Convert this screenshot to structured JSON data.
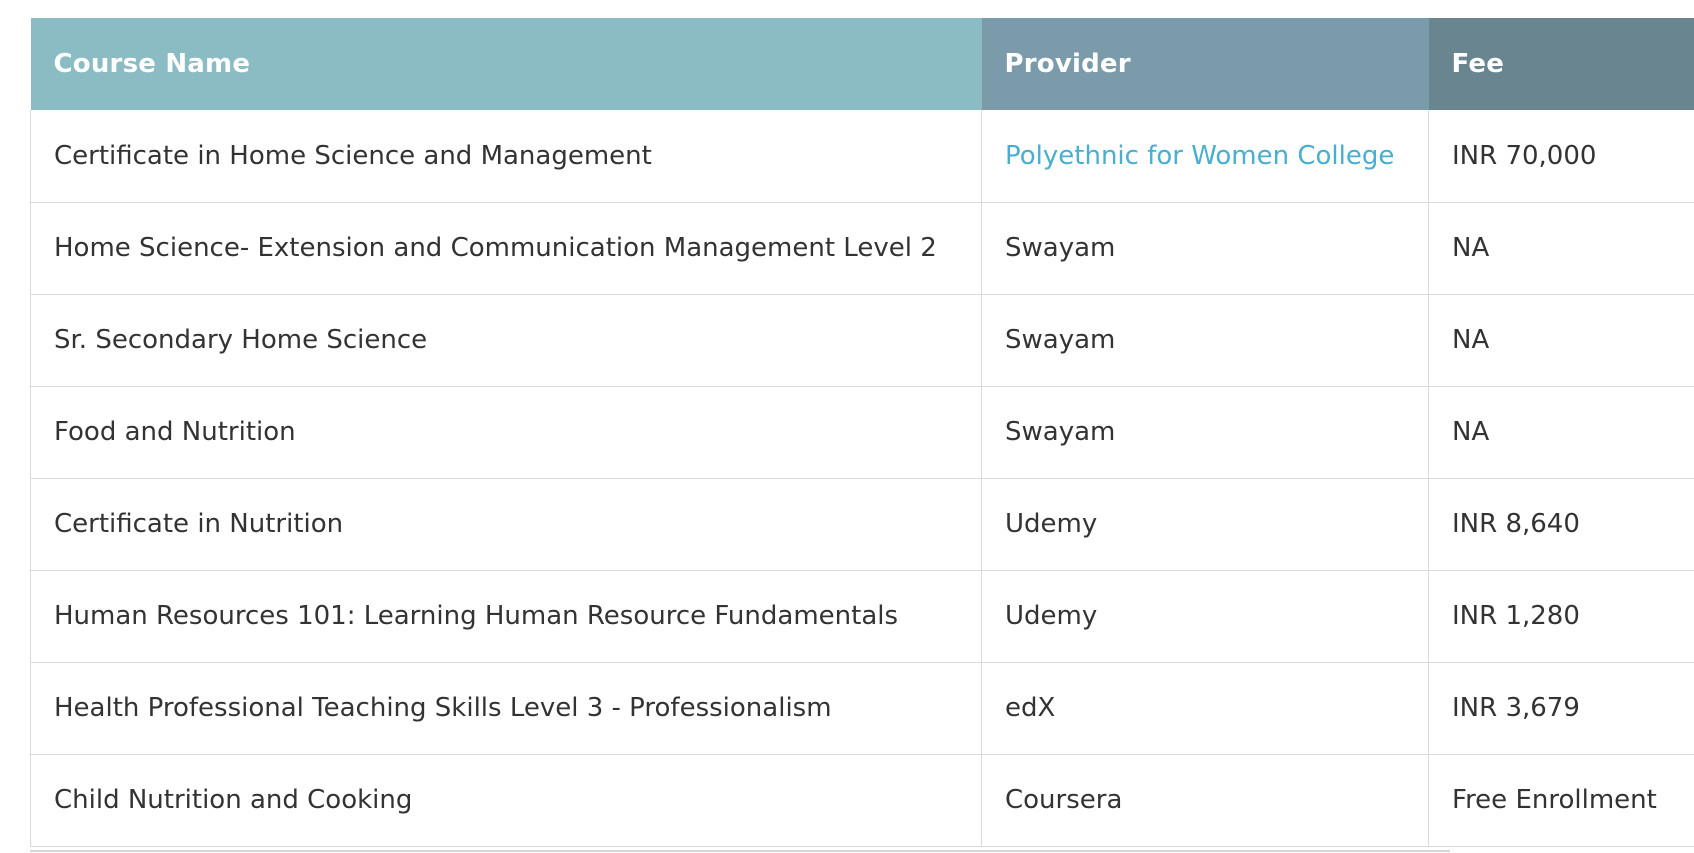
{
  "table": {
    "headers": {
      "course_name": "Course Name",
      "provider": "Provider",
      "fee": "Fee"
    },
    "rows": [
      {
        "course_name": "Certificate in Home Science and Management",
        "provider": "Polyethnic for Women College",
        "fee": "INR 70,000"
      },
      {
        "course_name": "Home Science- Extension and Communication Management Level 2",
        "provider": "Swayam",
        "fee": "NA"
      },
      {
        "course_name": "Sr. Secondary Home Science",
        "provider": "Swayam",
        "fee": "NA"
      },
      {
        "course_name": "Food and Nutrition",
        "provider": "Swayam",
        "fee": "NA"
      },
      {
        "course_name": "Certificate in Nutrition",
        "provider": "Udemy",
        "fee": "INR 8,640"
      },
      {
        "course_name": "Human Resources 101: Learning Human Resource Fundamentals",
        "provider": "Udemy",
        "fee": "INR 1,280"
      },
      {
        "course_name": "Health Professional Teaching Skills Level 3 - Professionalism",
        "provider": "edX",
        "fee": "INR 3,679"
      },
      {
        "course_name": "Child Nutrition and Cooking",
        "provider": "Coursera",
        "fee": "Free Enrollment"
      }
    ]
  },
  "colors": {
    "header_course_name_bg": "#8bbcc3",
    "header_provider_bg": "#7b9baa",
    "header_fee_bg": "#688590",
    "link": "#4aaed0",
    "text": "#333333",
    "border": "#dadada"
  }
}
